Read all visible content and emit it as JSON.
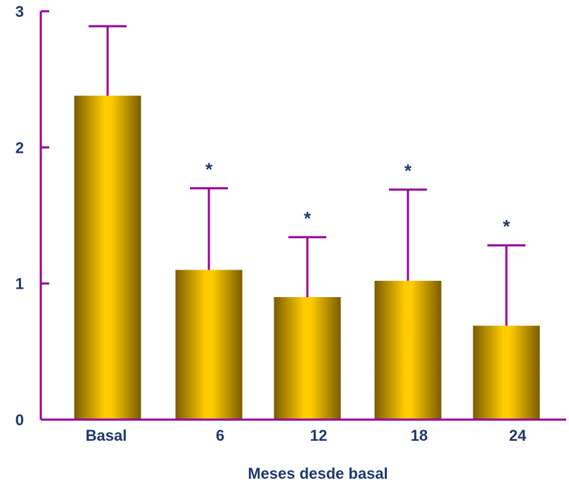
{
  "chart_data": {
    "type": "bar",
    "categories": [
      "Basal",
      "6",
      "12",
      "18",
      "24"
    ],
    "values": [
      2.38,
      1.1,
      0.9,
      1.02,
      0.69
    ],
    "error_upper": [
      2.89,
      1.7,
      1.34,
      1.69,
      1.28
    ],
    "annotations": [
      "",
      "*",
      "*",
      "*",
      "*"
    ],
    "xlabel": "Meses desde basal",
    "ylabel": "",
    "ylim": [
      0,
      3
    ],
    "yticks": [
      "0",
      "1",
      "2",
      "3"
    ],
    "grid": false,
    "legend": "none",
    "colors": {
      "bar_edge": "#7a5c00",
      "bar_center": "#ffcc00",
      "axis": "#990099",
      "text": "#1f3a6e"
    }
  }
}
